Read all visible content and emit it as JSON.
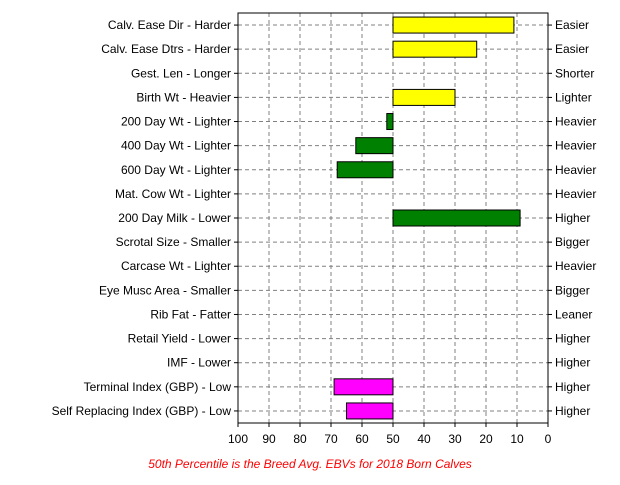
{
  "chart_data": {
    "type": "bar",
    "orientation": "horizontal",
    "reference_value": 50,
    "xlim": [
      100,
      0
    ],
    "x_reversed": true,
    "x_ticks": [
      "100",
      "90",
      "80",
      "70",
      "60",
      "50",
      "40",
      "30",
      "20",
      "10",
      "0"
    ],
    "grid": true,
    "rows": [
      {
        "left_label": "Calv. Ease Dir - Harder",
        "right_label": "Easier",
        "value": 11,
        "color": "#ffff00"
      },
      {
        "left_label": "Calv. Ease Dtrs - Harder",
        "right_label": "Easier",
        "value": 23,
        "color": "#ffff00"
      },
      {
        "left_label": "Gest. Len - Longer",
        "right_label": "Shorter",
        "value": 50,
        "color": "#ffff00"
      },
      {
        "left_label": "Birth Wt - Heavier",
        "right_label": "Lighter",
        "value": 30,
        "color": "#ffff00"
      },
      {
        "left_label": "200 Day Wt - Lighter",
        "right_label": "Heavier",
        "value": 52,
        "color": "#008000"
      },
      {
        "left_label": "400 Day Wt - Lighter",
        "right_label": "Heavier",
        "value": 62,
        "color": "#008000"
      },
      {
        "left_label": "600 Day Wt - Lighter",
        "right_label": "Heavier",
        "value": 68,
        "color": "#008000"
      },
      {
        "left_label": "Mat. Cow Wt - Lighter",
        "right_label": "Heavier",
        "value": 50,
        "color": "#008000"
      },
      {
        "left_label": "200 Day Milk - Lower",
        "right_label": "Higher",
        "value": 9,
        "color": "#008000"
      },
      {
        "left_label": "Scrotal Size - Smaller",
        "right_label": "Bigger",
        "value": 50,
        "color": "#008000"
      },
      {
        "left_label": "Carcase Wt - Lighter",
        "right_label": "Heavier",
        "value": 50,
        "color": "#008000"
      },
      {
        "left_label": "Eye Musc Area - Smaller",
        "right_label": "Bigger",
        "value": 50,
        "color": "#008000"
      },
      {
        "left_label": "Rib Fat - Fatter",
        "right_label": "Leaner",
        "value": 50,
        "color": "#008000"
      },
      {
        "left_label": "Retail Yield - Lower",
        "right_label": "Higher",
        "value": 50,
        "color": "#008000"
      },
      {
        "left_label": "IMF - Lower",
        "right_label": "Higher",
        "value": 50,
        "color": "#008000"
      },
      {
        "left_label": "Terminal Index (GBP) - Low",
        "right_label": "Higher",
        "value": 69,
        "color": "#ff00ff"
      },
      {
        "left_label": "Self Replacing Index (GBP) - Low",
        "right_label": "Higher",
        "value": 65,
        "color": "#ff00ff"
      }
    ],
    "footnote": "50th Percentile is the Breed Avg. EBVs for 2018 Born Calves",
    "footnote_color": "#ff0000"
  }
}
